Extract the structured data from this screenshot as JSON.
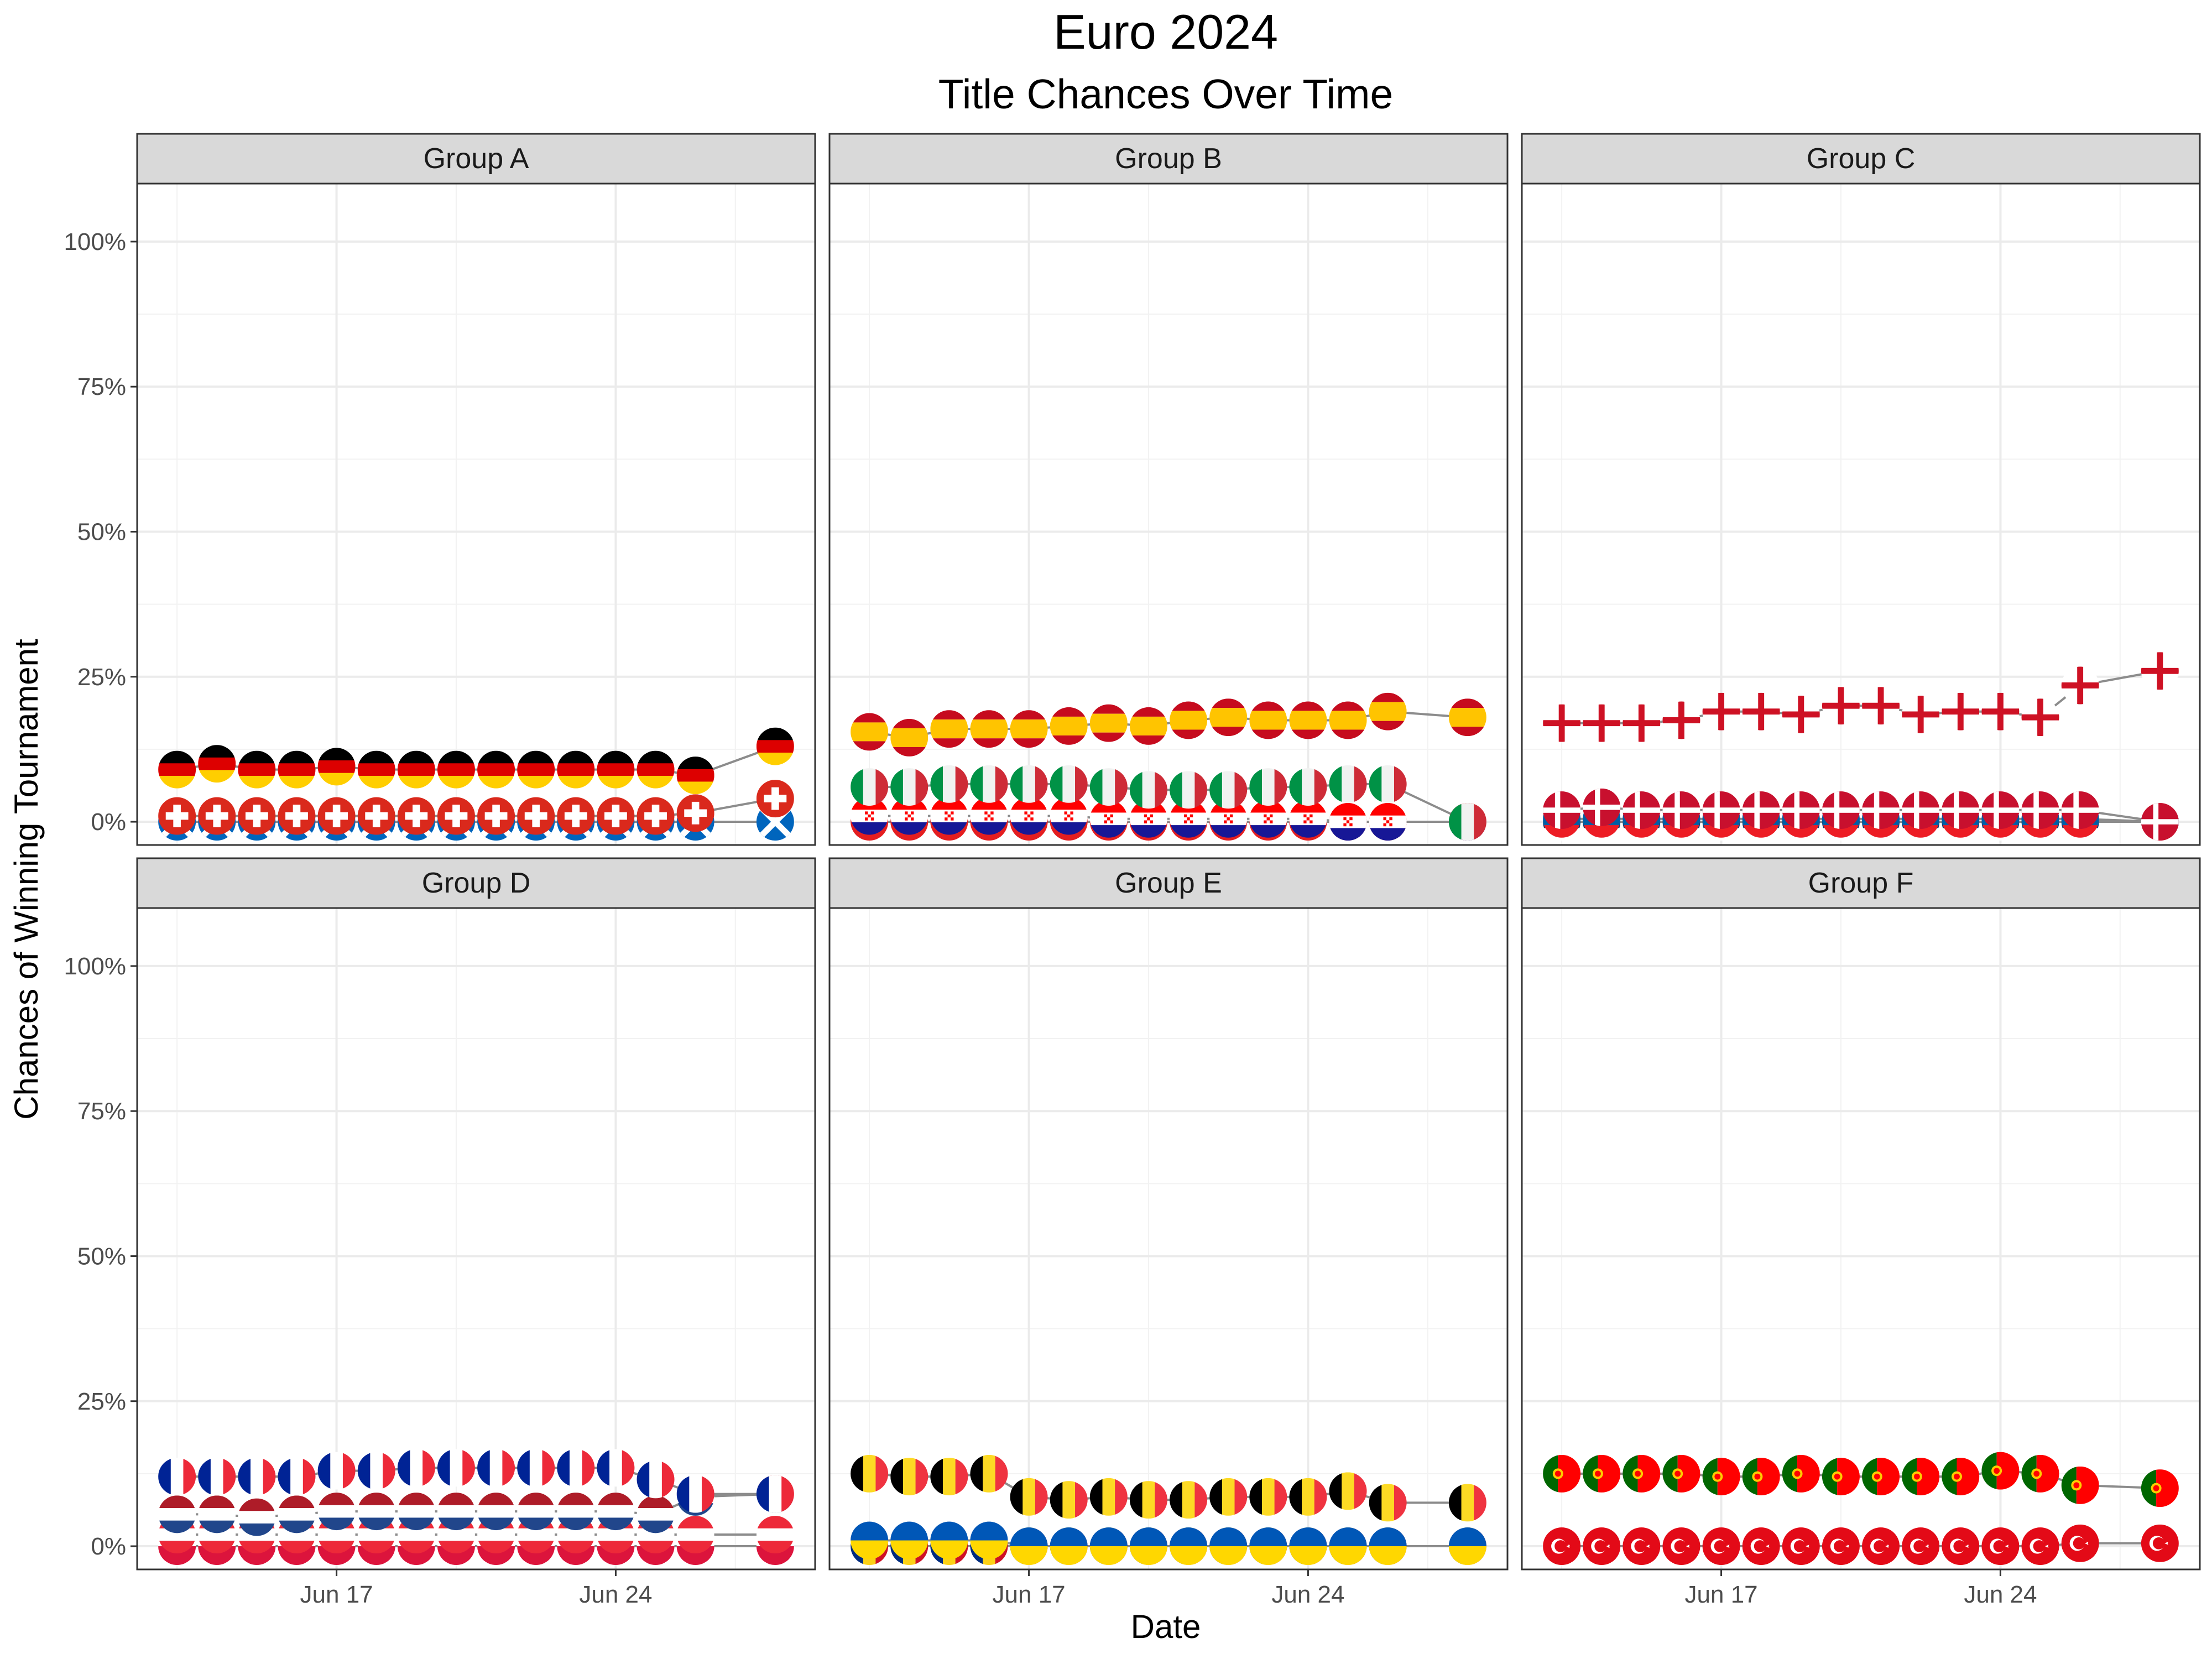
{
  "chart_data": {
    "type": "line",
    "title": "Euro 2024",
    "subtitle": "Title Chances Over Time",
    "xlabel": "Date",
    "ylabel": "Chances of Winning Tournament",
    "x_ticks": [
      "Jun 17",
      "Jun 24"
    ],
    "y_ticks": [
      "0%",
      "25%",
      "50%",
      "75%",
      "100%"
    ],
    "ylim": [
      -0.04,
      1.1
    ],
    "xlim": [
      "2024-06-12",
      "2024-06-29"
    ],
    "grid": true,
    "dates": [
      "2024-06-13",
      "2024-06-14",
      "2024-06-15",
      "2024-06-16",
      "2024-06-17",
      "2024-06-18",
      "2024-06-19",
      "2024-06-20",
      "2024-06-21",
      "2024-06-22",
      "2024-06-23",
      "2024-06-24",
      "2024-06-25",
      "2024-06-26",
      "2024-06-28"
    ],
    "panels": [
      {
        "name": "Group A",
        "series": [
          {
            "team": "Germany",
            "flag": "germany",
            "values": [
              0.09,
              0.1,
              0.09,
              0.09,
              0.095,
              0.09,
              0.09,
              0.09,
              0.09,
              0.09,
              0.09,
              0.09,
              0.09,
              0.08,
              0.13
            ]
          },
          {
            "team": "Switzerland",
            "flag": "switzerland",
            "values": [
              0.01,
              0.01,
              0.01,
              0.01,
              0.01,
              0.01,
              0.01,
              0.01,
              0.01,
              0.01,
              0.01,
              0.01,
              0.01,
              0.015,
              0.04
            ]
          },
          {
            "team": "Scotland",
            "flag": "scotland",
            "values": [
              0.0,
              0.0,
              0.0,
              0.0,
              0.0,
              0.0,
              0.0,
              0.0,
              0.0,
              0.0,
              0.0,
              0.0,
              0.0,
              0.0,
              0.0
            ]
          }
        ]
      },
      {
        "name": "Group B",
        "series": [
          {
            "team": "Spain",
            "flag": "spain",
            "values": [
              0.155,
              0.145,
              0.16,
              0.16,
              0.16,
              0.165,
              0.17,
              0.165,
              0.175,
              0.18,
              0.175,
              0.175,
              0.175,
              0.19,
              0.18
            ]
          },
          {
            "team": "Italy",
            "flag": "italy",
            "values": [
              0.06,
              0.06,
              0.065,
              0.065,
              0.065,
              0.065,
              0.06,
              0.055,
              0.055,
              0.055,
              0.06,
              0.06,
              0.065,
              0.065,
              0.0
            ]
          },
          {
            "team": "Croatia",
            "flag": "croatia",
            "values": [
              0.01,
              0.01,
              0.01,
              0.01,
              0.01,
              0.01,
              0.005,
              0.005,
              0.005,
              0.005,
              0.005,
              0.005,
              0.0,
              0.0,
              0.0
            ]
          },
          {
            "team": "Albania",
            "flag": "albania",
            "values": [
              0.0,
              0.0,
              0.0,
              0.0,
              0.0,
              0.0,
              0.0,
              0.0,
              0.0,
              0.0,
              0.0,
              0.0,
              0.0,
              0.0,
              0.0
            ]
          }
        ]
      },
      {
        "name": "Group C",
        "series": [
          {
            "team": "England",
            "flag": "england",
            "values": [
              0.17,
              0.17,
              0.17,
              0.175,
              0.19,
              0.19,
              0.185,
              0.2,
              0.2,
              0.185,
              0.19,
              0.19,
              0.18,
              0.235,
              0.26
            ]
          },
          {
            "team": "Denmark",
            "flag": "denmark",
            "values": [
              0.02,
              0.025,
              0.02,
              0.02,
              0.02,
              0.02,
              0.02,
              0.02,
              0.02,
              0.02,
              0.02,
              0.02,
              0.02,
              0.02,
              0.0
            ]
          },
          {
            "team": "Slovenia",
            "flag": "slovenia",
            "values": [
              0.005,
              0.005,
              0.005,
              0.005,
              0.005,
              0.005,
              0.005,
              0.005,
              0.005,
              0.005,
              0.005,
              0.005,
              0.005,
              0.005,
              0.0
            ]
          },
          {
            "team": "Serbia",
            "flag": "serbia",
            "values": [
              0.0,
              0.0,
              0.0,
              0.0,
              0.0,
              0.0,
              0.0,
              0.0,
              0.0,
              0.0,
              0.0,
              0.0,
              0.0,
              0.0,
              0.0
            ]
          }
        ]
      },
      {
        "name": "Group D",
        "series": [
          {
            "team": "France",
            "flag": "france",
            "values": [
              0.12,
              0.12,
              0.12,
              0.12,
              0.13,
              0.13,
              0.135,
              0.135,
              0.135,
              0.135,
              0.135,
              0.135,
              0.115,
              0.09,
              0.09
            ]
          },
          {
            "team": "Netherlands",
            "flag": "netherlands",
            "values": [
              0.055,
              0.055,
              0.05,
              0.055,
              0.06,
              0.06,
              0.06,
              0.06,
              0.06,
              0.06,
              0.06,
              0.06,
              0.055,
              0.085,
              0.09
            ]
          },
          {
            "team": "Austria",
            "flag": "austria",
            "values": [
              0.02,
              0.02,
              0.02,
              0.02,
              0.02,
              0.02,
              0.02,
              0.02,
              0.02,
              0.02,
              0.02,
              0.02,
              0.02,
              0.02,
              0.02
            ]
          },
          {
            "team": "Poland",
            "flag": "poland",
            "values": [
              0.0,
              0.0,
              0.0,
              0.0,
              0.0,
              0.0,
              0.0,
              0.0,
              0.0,
              0.0,
              0.0,
              0.0,
              0.0,
              0.0,
              0.0
            ]
          }
        ]
      },
      {
        "name": "Group E",
        "series": [
          {
            "team": "Belgium",
            "flag": "belgium",
            "values": [
              0.125,
              0.12,
              0.12,
              0.125,
              0.085,
              0.08,
              0.085,
              0.08,
              0.08,
              0.085,
              0.085,
              0.085,
              0.095,
              0.075,
              0.075
            ]
          },
          {
            "team": "Ukraine",
            "flag": "ukraine",
            "values": [
              0.01,
              0.01,
              0.01,
              0.01,
              0.0,
              0.0,
              0.0,
              0.0,
              0.0,
              0.0,
              0.0,
              0.0,
              0.0,
              0.0,
              0.0
            ]
          },
          {
            "team": "Romania",
            "flag": "romania",
            "values": [
              0.0,
              0.0,
              0.0,
              0.0,
              0.0,
              0.0,
              0.0,
              0.0,
              0.0,
              0.0,
              0.0,
              0.0,
              0.0,
              0.0,
              0.0
            ]
          }
        ]
      },
      {
        "name": "Group F",
        "series": [
          {
            "team": "Portugal",
            "flag": "portugal",
            "values": [
              0.125,
              0.125,
              0.125,
              0.125,
              0.12,
              0.12,
              0.125,
              0.12,
              0.12,
              0.12,
              0.12,
              0.13,
              0.125,
              0.105,
              0.1
            ]
          },
          {
            "team": "Turkey",
            "flag": "turkey",
            "values": [
              0.0,
              0.0,
              0.0,
              0.0,
              0.0,
              0.0,
              0.0,
              0.0,
              0.0,
              0.0,
              0.0,
              0.0,
              0.0,
              0.005,
              0.005
            ]
          }
        ]
      }
    ]
  }
}
